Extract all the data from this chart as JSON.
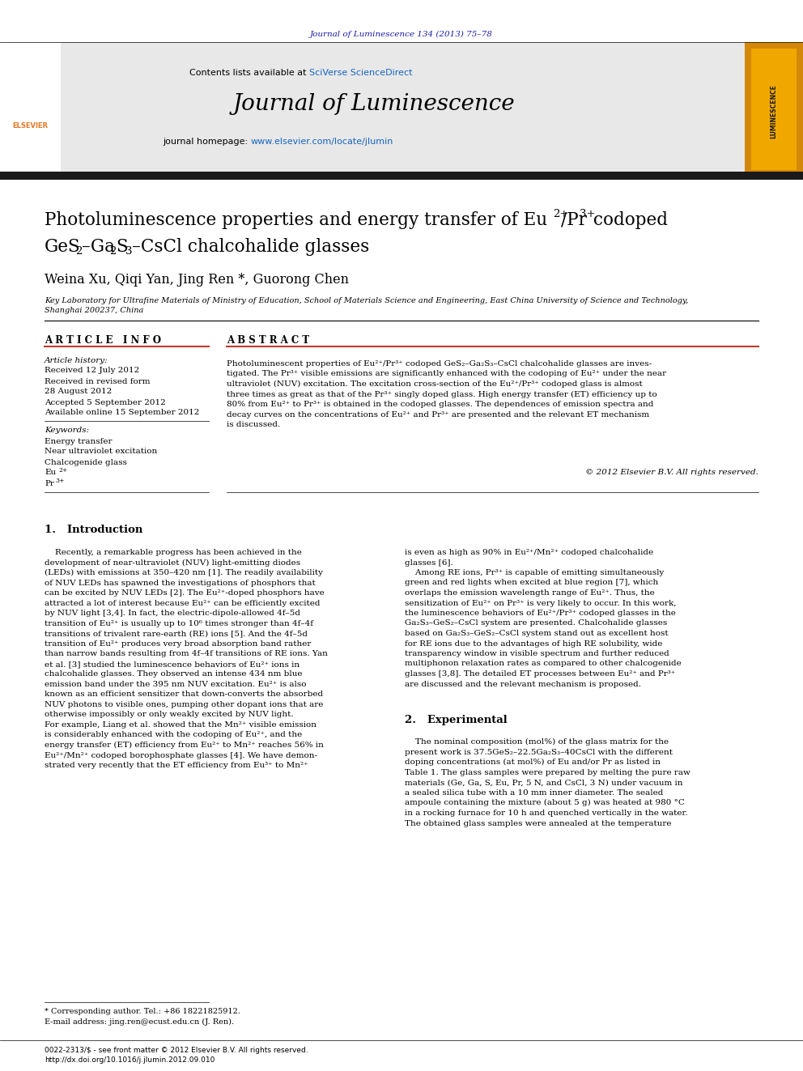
{
  "page_bg": "#ffffff",
  "header_journal_ref": "Journal of Luminescence 134 (2013) 75–78",
  "header_ref_color": "#1a1aaa",
  "header_sciverse_color": "#1565c0",
  "journal_name": "Journal of Luminescence",
  "journal_url": "www.elsevier.com/locate/jlumin",
  "journal_url_color": "#1565c0",
  "black_bar_color": "#1a1a1a",
  "header_bg": "#e8e8e8",
  "section_article_info": "ARTICLE INFO",
  "section_abstract": "ABSTRACT",
  "article_history_label": "Article history:",
  "received": "Received 12 July 2012",
  "received_revised": "Received in revised form",
  "date_revised": "28 August 2012",
  "accepted": "Accepted 5 September 2012",
  "available": "Available online 15 September 2012",
  "keywords_label": "Keywords:",
  "keyword1": "Energy transfer",
  "keyword2": "Near ultraviolet excitation",
  "keyword3": "Chalcogenide glass",
  "copyright": "© 2012 Elsevier B.V. All rights reserved.",
  "authors": "Weina Xu, Qiqi Yan, Jing Ren *, Guorong Chen",
  "affiliation": "Key Laboratory for Ultrafine Materials of Ministry of Education, School of Materials Science and Engineering, East China University of Science and Technology,",
  "affiliation2": "Shanghai 200237, China",
  "footnote1": "* Corresponding author. Tel.: +86 18221825912.",
  "footnote2": "E-mail address: jing.ren@ecust.edu.cn (J. Ren).",
  "footer1": "0022-2313/$ - see front matter © 2012 Elsevier B.V. All rights reserved.",
  "footer2": "http://dx.doi.org/10.1016/j.jlumin.2012.09.010",
  "elsevier_color": "#e87722",
  "red_line_color": "#c0392b"
}
